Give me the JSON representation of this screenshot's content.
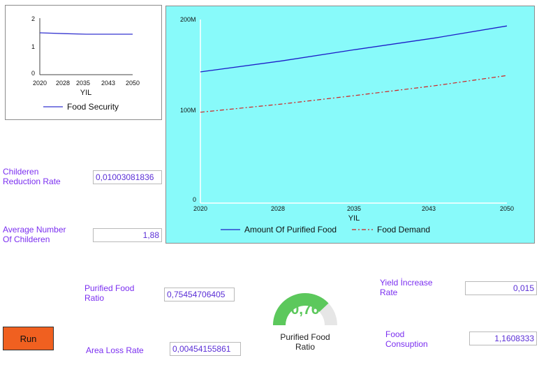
{
  "small_chart": {
    "yticks": [
      "2",
      "1",
      "0"
    ],
    "xticks": [
      "2020",
      "2028",
      "2035",
      "2043",
      "2050"
    ],
    "xlabel": "YIL",
    "legend": "Food Security"
  },
  "big_chart": {
    "yticks": [
      "200M",
      "100M",
      "0"
    ],
    "xticks": [
      "2020",
      "2028",
      "2035",
      "2043",
      "2050"
    ],
    "xlabel": "YIL",
    "legend1": "Amount Of Purified Food",
    "legend2": "Food Demand"
  },
  "chart_data": [
    {
      "type": "line",
      "x": [
        2020,
        2028,
        2035,
        2043,
        2050
      ],
      "series": [
        {
          "name": "Food Security",
          "values": [
            1.5,
            1.47,
            1.45,
            1.45,
            1.45
          ],
          "color": "#3535d0"
        }
      ],
      "xlabel": "YIL",
      "ylim": [
        0,
        2
      ],
      "xlim": [
        2020,
        2050
      ],
      "legend_position": "bottom"
    },
    {
      "type": "line",
      "x": [
        2020,
        2028,
        2035,
        2043,
        2050
      ],
      "series": [
        {
          "name": "Amount Of Purified Food",
          "values": [
            143000000,
            155000000,
            167000000,
            180000000,
            193000000
          ],
          "color": "#1d1dc8"
        },
        {
          "name": "Food Demand",
          "values": [
            99000000,
            108000000,
            117000000,
            128000000,
            139000000
          ],
          "color": "#d02020"
        }
      ],
      "xlabel": "YIL",
      "ylim": [
        0,
        200000000
      ],
      "xlim": [
        2020,
        2050
      ],
      "grid": false,
      "legend_position": "bottom"
    }
  ],
  "params": {
    "childeren_label": "Childeren\nReduction Rate",
    "childeren_value": "0,01003081836",
    "avg_label": "Average Number\nOf Childeren",
    "avg_value": "1,88",
    "purified_label": "Purified Food\nRatio",
    "purified_value": "0,75454706405",
    "area_label": "Area Loss Rate",
    "area_value": "0,00454155861",
    "yield_label": "Yield İncrease\nRate",
    "yield_value": "0,015",
    "food_cons_label": "Food\nConsuption",
    "food_cons_value": "1,1608333"
  },
  "gauge": {
    "value_text": "0,76",
    "value": 0.76,
    "label": "Purified Food\nRatio",
    "color_fill": "#5cc85c",
    "color_track": "#e6e6e6"
  },
  "run_label": "Run",
  "colors": {
    "chart_bg": "#88fafa",
    "label": "#7b2ff0"
  }
}
